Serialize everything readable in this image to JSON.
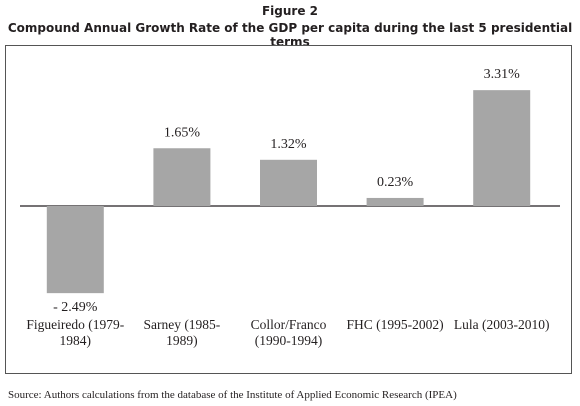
{
  "chart_data": {
    "type": "bar",
    "title": "Figure 2",
    "subtitle": "Compound Annual Growth Rate of the GDP per capita during the last 5 presidential terms",
    "categories": [
      "Figueiredo (1979-1984)",
      "Sarney (1985-1989)",
      "Collor/Franco (1990-1994)",
      "FHC (1995-2002)",
      "Lula (2003-2010)"
    ],
    "values": [
      -2.49,
      1.65,
      1.32,
      0.23,
      3.31
    ],
    "value_labels": [
      "- 2.49%",
      "1.65%",
      "1.32%",
      "0.23%",
      "3.31%"
    ],
    "color": "#a6a6a6",
    "source": "Source: Authors calculations from the database of the Institute of Applied Economic Research (IPEA)"
  }
}
